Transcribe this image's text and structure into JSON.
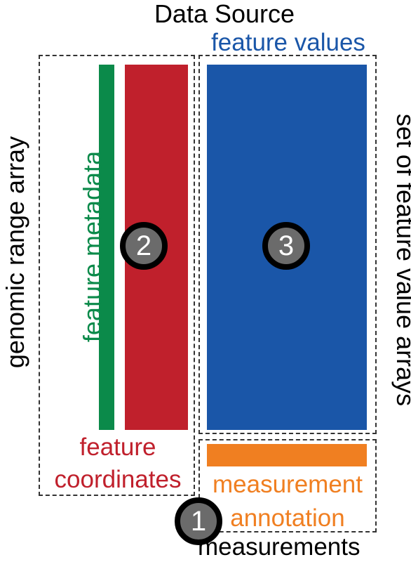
{
  "title": "Data Source",
  "left_axis_label": "genomic range array",
  "right_axis_label": "set of feature value arrays",
  "feature_values_label": "feature values",
  "feature_metadata_label": "feature metadata",
  "feature_coordinates_label_line1": "feature",
  "feature_coordinates_label_line2": "coordinates",
  "measurement_annotation_line1": "measurement",
  "measurement_annotation_line2": "annotation",
  "measurements_label": "measurements",
  "badges": {
    "one": "1",
    "two": "2",
    "three": "3"
  },
  "colors": {
    "feature_values": "#1a56a8",
    "feature_metadata": "#0b8a4a",
    "feature_coordinates": "#c0202c",
    "measurement_annotation": "#f07f21",
    "badge_fill": "#6b6b6b",
    "badge_border": "#000000"
  }
}
